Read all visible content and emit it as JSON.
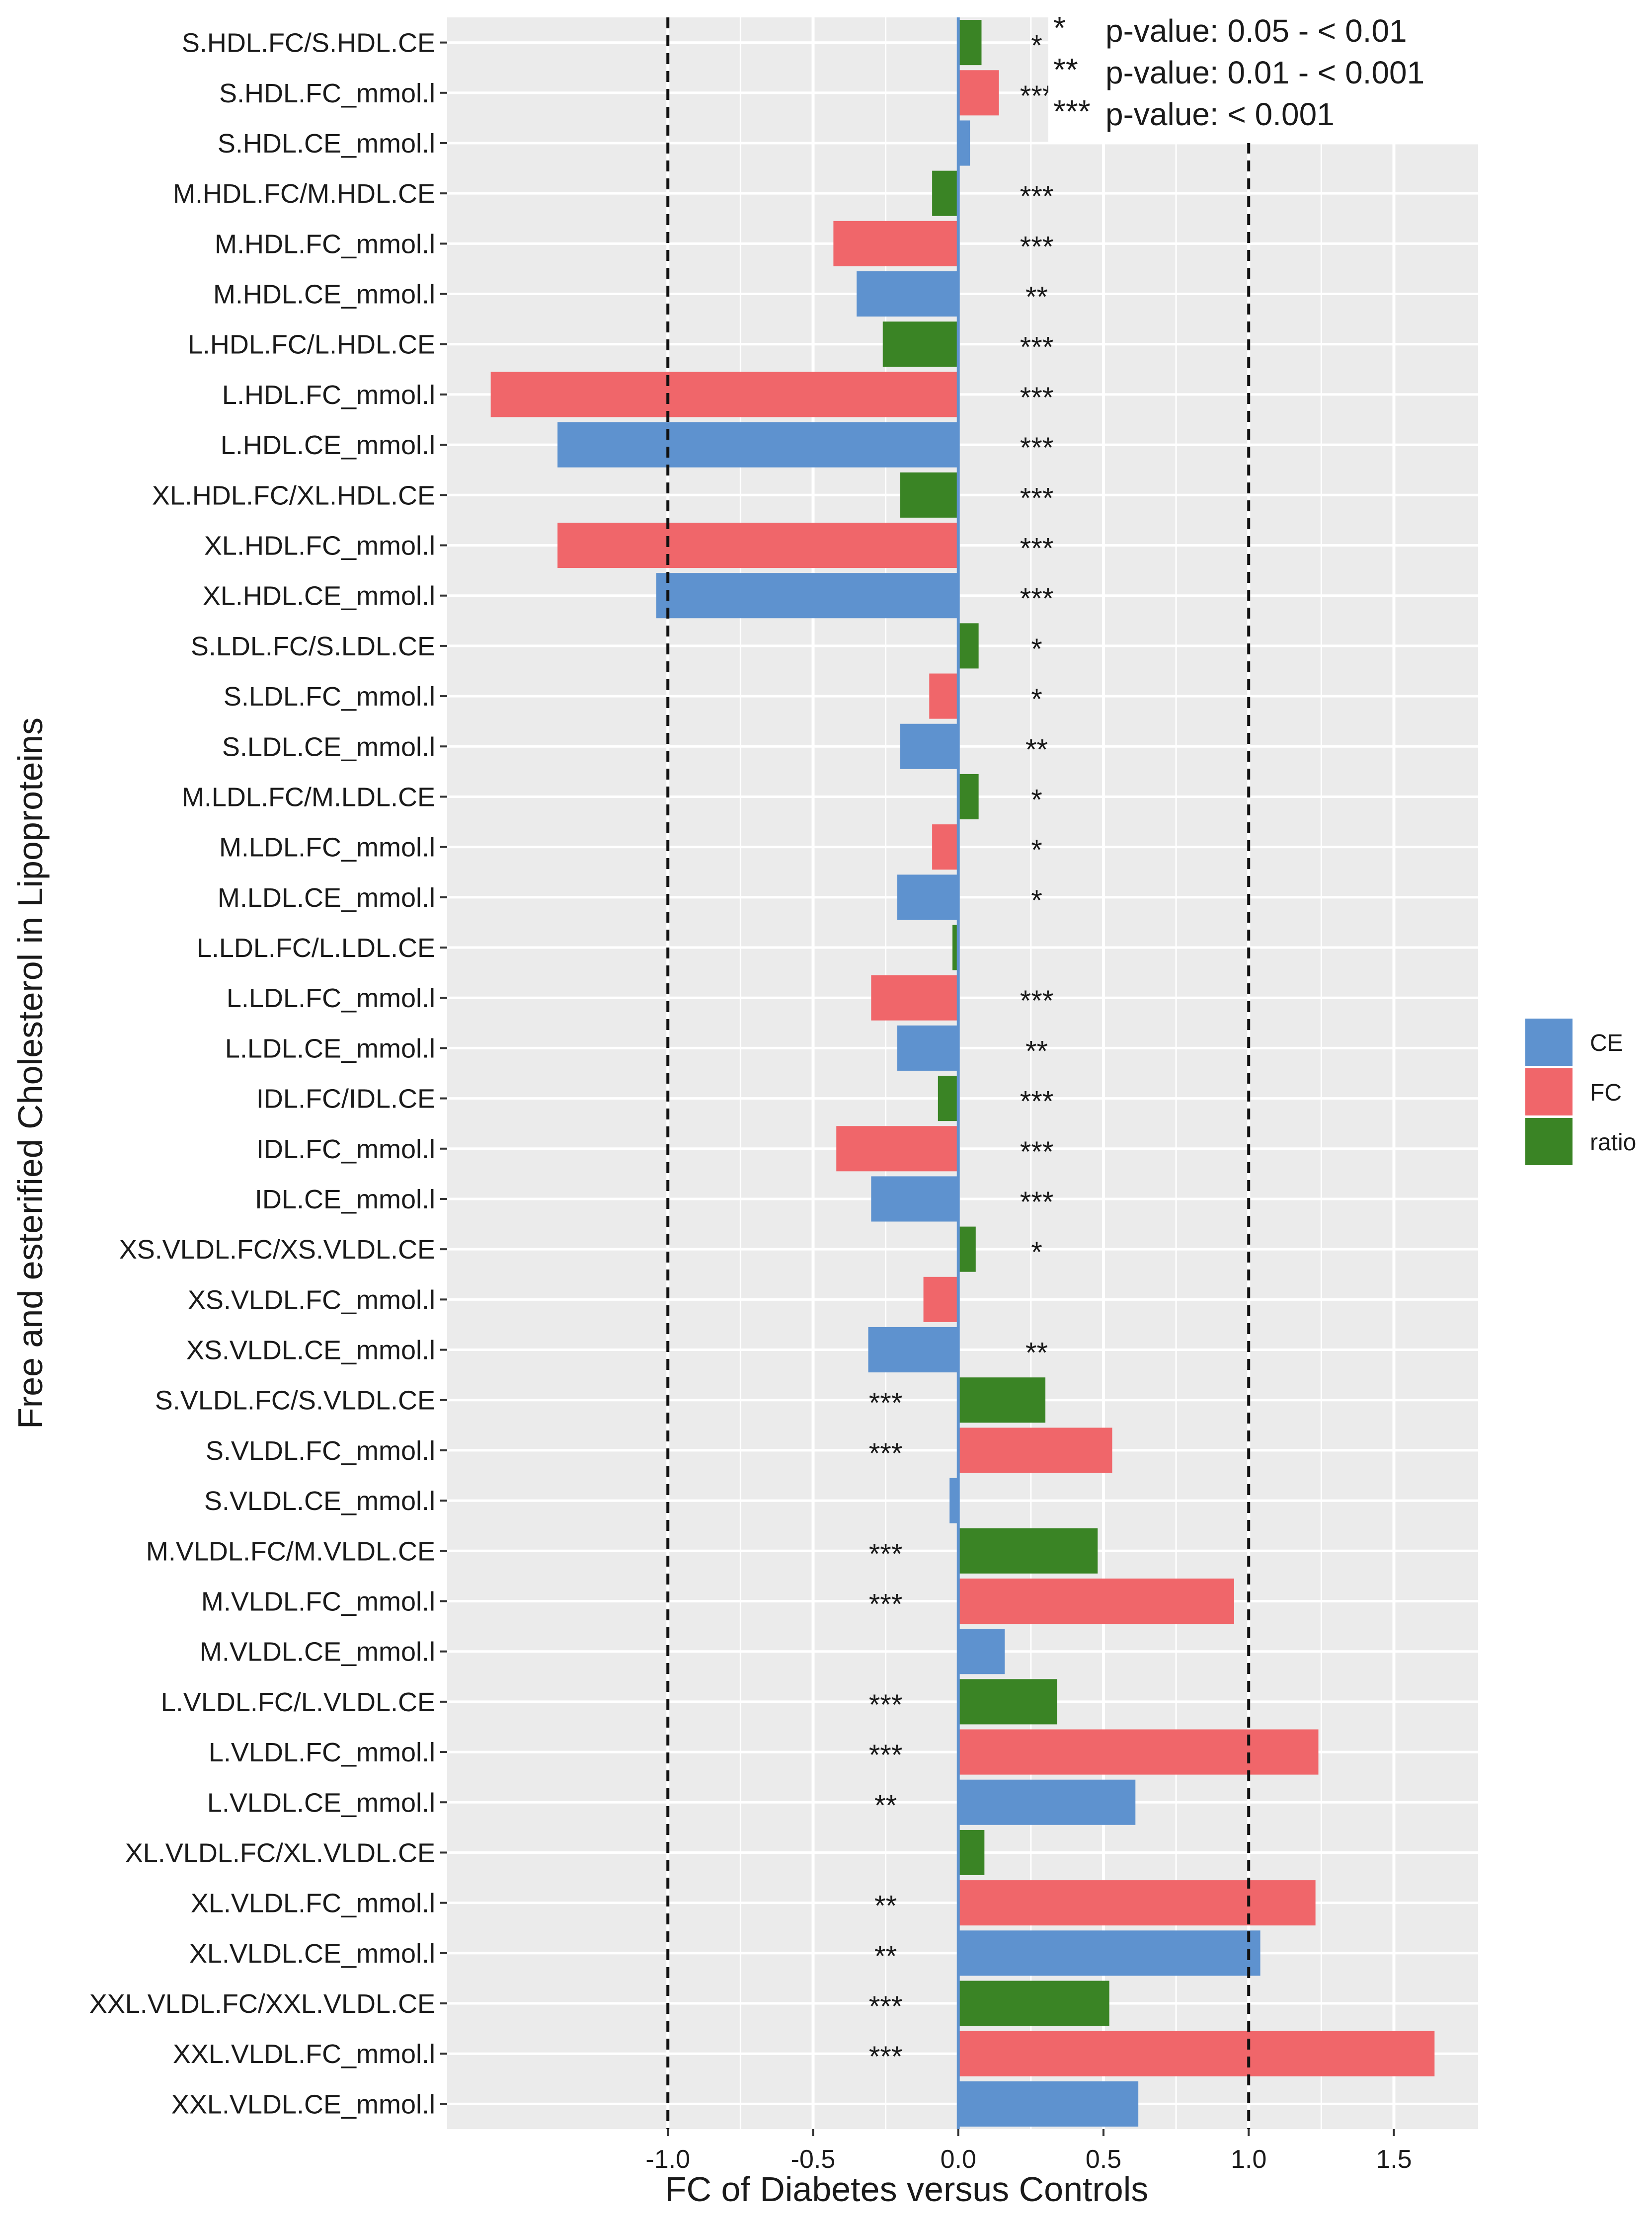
{
  "chart_data": {
    "type": "bar",
    "orientation": "horizontal",
    "xlabel": "FC of Diabetes versus Controls",
    "ylabel": "Free and esterified Cholesterol in Lipoproteins",
    "xlim": [
      -1.76,
      1.79
    ],
    "x_ticks": [
      -1.0,
      -0.5,
      0.0,
      0.5,
      1.0,
      1.5
    ],
    "x_tick_labels": [
      "-1.0",
      "-0.5",
      "0.0",
      "0.5",
      "1.0",
      "1.5"
    ],
    "reference_lines": [
      -1.0,
      1.0
    ],
    "legend_position": "right",
    "legend": [
      {
        "name": "CE",
        "color": "#5E92CF"
      },
      {
        "name": "FC",
        "color": "#F0666A"
      },
      {
        "name": "ratio",
        "color": "#3A8425"
      }
    ],
    "colors": {
      "CE": "#5E92CF",
      "FC": "#F0666A",
      "ratio": "#3A8425",
      "panel": "#EBEBEB",
      "grid": "#FFFFFF",
      "zero_line": "#5E92CF"
    },
    "significance_key": [
      {
        "symbol": "*",
        "label": "p-value: 0.05 - < 0.01"
      },
      {
        "symbol": "**",
        "label": "p-value: 0.01 - < 0.001"
      },
      {
        "symbol": "***",
        "label": "p-value: < 0.001"
      }
    ],
    "rows": [
      {
        "label": "S.HDL.FC/S.HDL.CE",
        "group": "ratio",
        "value": 0.08,
        "sig": "*"
      },
      {
        "label": "S.HDL.FC_mmol.l",
        "group": "FC",
        "value": 0.14,
        "sig": "***"
      },
      {
        "label": "S.HDL.CE_mmol.l",
        "group": "CE",
        "value": 0.04,
        "sig": ""
      },
      {
        "label": "M.HDL.FC/M.HDL.CE",
        "group": "ratio",
        "value": -0.09,
        "sig": "***"
      },
      {
        "label": "M.HDL.FC_mmol.l",
        "group": "FC",
        "value": -0.43,
        "sig": "***"
      },
      {
        "label": "M.HDL.CE_mmol.l",
        "group": "CE",
        "value": -0.35,
        "sig": "**"
      },
      {
        "label": "L.HDL.FC/L.HDL.CE",
        "group": "ratio",
        "value": -0.26,
        "sig": "***"
      },
      {
        "label": "L.HDL.FC_mmol.l",
        "group": "FC",
        "value": -1.61,
        "sig": "***"
      },
      {
        "label": "L.HDL.CE_mmol.l",
        "group": "CE",
        "value": -1.38,
        "sig": "***"
      },
      {
        "label": "XL.HDL.FC/XL.HDL.CE",
        "group": "ratio",
        "value": -0.2,
        "sig": "***"
      },
      {
        "label": "XL.HDL.FC_mmol.l",
        "group": "FC",
        "value": -1.38,
        "sig": "***"
      },
      {
        "label": "XL.HDL.CE_mmol.l",
        "group": "CE",
        "value": -1.04,
        "sig": "***"
      },
      {
        "label": "S.LDL.FC/S.LDL.CE",
        "group": "ratio",
        "value": 0.07,
        "sig": "*"
      },
      {
        "label": "S.LDL.FC_mmol.l",
        "group": "FC",
        "value": -0.1,
        "sig": "*"
      },
      {
        "label": "S.LDL.CE_mmol.l",
        "group": "CE",
        "value": -0.2,
        "sig": "**"
      },
      {
        "label": "M.LDL.FC/M.LDL.CE",
        "group": "ratio",
        "value": 0.07,
        "sig": "*"
      },
      {
        "label": "M.LDL.FC_mmol.l",
        "group": "FC",
        "value": -0.09,
        "sig": "*"
      },
      {
        "label": "M.LDL.CE_mmol.l",
        "group": "CE",
        "value": -0.21,
        "sig": "*"
      },
      {
        "label": "L.LDL.FC/L.LDL.CE",
        "group": "ratio",
        "value": -0.02,
        "sig": ""
      },
      {
        "label": "L.LDL.FC_mmol.l",
        "group": "FC",
        "value": -0.3,
        "sig": "***"
      },
      {
        "label": "L.LDL.CE_mmol.l",
        "group": "CE",
        "value": -0.21,
        "sig": "**"
      },
      {
        "label": "IDL.FC/IDL.CE",
        "group": "ratio",
        "value": -0.07,
        "sig": "***"
      },
      {
        "label": "IDL.FC_mmol.l",
        "group": "FC",
        "value": -0.42,
        "sig": "***"
      },
      {
        "label": "IDL.CE_mmol.l",
        "group": "CE",
        "value": -0.3,
        "sig": "***"
      },
      {
        "label": "XS.VLDL.FC/XS.VLDL.CE",
        "group": "ratio",
        "value": 0.06,
        "sig": "*"
      },
      {
        "label": "XS.VLDL.FC_mmol.l",
        "group": "FC",
        "value": -0.12,
        "sig": ""
      },
      {
        "label": "XS.VLDL.CE_mmol.l",
        "group": "CE",
        "value": -0.31,
        "sig": "**"
      },
      {
        "label": "S.VLDL.FC/S.VLDL.CE",
        "group": "ratio",
        "value": 0.3,
        "sig": "***"
      },
      {
        "label": "S.VLDL.FC_mmol.l",
        "group": "FC",
        "value": 0.53,
        "sig": "***"
      },
      {
        "label": "S.VLDL.CE_mmol.l",
        "group": "CE",
        "value": -0.03,
        "sig": ""
      },
      {
        "label": "M.VLDL.FC/M.VLDL.CE",
        "group": "ratio",
        "value": 0.48,
        "sig": "***"
      },
      {
        "label": "M.VLDL.FC_mmol.l",
        "group": "FC",
        "value": 0.95,
        "sig": "***"
      },
      {
        "label": "M.VLDL.CE_mmol.l",
        "group": "CE",
        "value": 0.16,
        "sig": ""
      },
      {
        "label": "L.VLDL.FC/L.VLDL.CE",
        "group": "ratio",
        "value": 0.34,
        "sig": "***"
      },
      {
        "label": "L.VLDL.FC_mmol.l",
        "group": "FC",
        "value": 1.24,
        "sig": "***"
      },
      {
        "label": "L.VLDL.CE_mmol.l",
        "group": "CE",
        "value": 0.61,
        "sig": "**"
      },
      {
        "label": "XL.VLDL.FC/XL.VLDL.CE",
        "group": "ratio",
        "value": 0.09,
        "sig": ""
      },
      {
        "label": "XL.VLDL.FC_mmol.l",
        "group": "FC",
        "value": 1.23,
        "sig": "**"
      },
      {
        "label": "XL.VLDL.CE_mmol.l",
        "group": "CE",
        "value": 1.04,
        "sig": "**"
      },
      {
        "label": "XXL.VLDL.FC/XXL.VLDL.CE",
        "group": "ratio",
        "value": 0.52,
        "sig": "***"
      },
      {
        "label": "XXL.VLDL.FC_mmol.l",
        "group": "FC",
        "value": 1.64,
        "sig": "***"
      },
      {
        "label": "XXL.VLDL.CE_mmol.l",
        "group": "CE",
        "value": 0.62,
        "sig": ""
      }
    ]
  }
}
